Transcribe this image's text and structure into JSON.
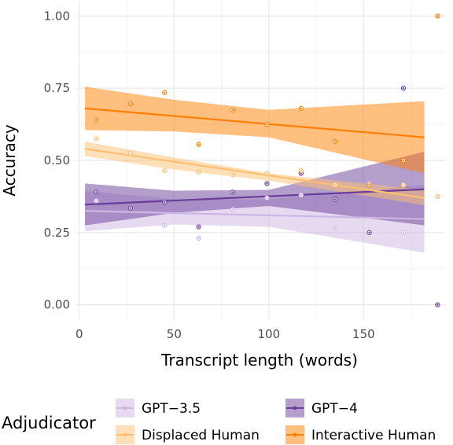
{
  "chart_data": {
    "type": "scatter",
    "xlabel": "Transcript length (words)",
    "ylabel": "Accuracy",
    "xlim": [
      -2,
      193
    ],
    "ylim": [
      -0.05,
      1.05
    ],
    "xticks": [
      0,
      50,
      100,
      150
    ],
    "yticks": [
      0.0,
      0.25,
      0.5,
      0.75,
      1.0
    ],
    "xtick_labels": [
      "0",
      "50",
      "100",
      "150"
    ],
    "ytick_labels": [
      "0.00",
      "0.25",
      "0.50",
      "0.75",
      "1.00"
    ],
    "grid": true,
    "legend": {
      "title": "Adjudicator",
      "position": "bottom",
      "entries": [
        {
          "label": "GPT−3.5",
          "series": 0
        },
        {
          "label": "GPT−4",
          "series": 1
        },
        {
          "label": "Displaced Human",
          "series": 2
        },
        {
          "label": "Interactive Human",
          "series": 3
        }
      ]
    },
    "series": [
      {
        "name": "GPT−3.5",
        "color": "#cdb6e3",
        "points": [
          [
            9,
            0.36
          ],
          [
            45,
            0.275
          ],
          [
            63,
            0.23
          ],
          [
            81,
            0.33
          ],
          [
            99,
            0.37
          ],
          [
            117,
            0.38
          ],
          [
            135,
            0.265
          ],
          [
            153,
            0.42
          ],
          [
            171,
            0.25
          ]
        ],
        "fit": [
          [
            3,
            0.325
          ],
          [
            182,
            0.297
          ]
        ],
        "band": {
          "x": [
            3,
            50,
            100,
            182
          ],
          "lower": [
            0.255,
            0.278,
            0.27,
            0.18
          ],
          "upper": [
            0.395,
            0.365,
            0.365,
            0.415
          ]
        }
      },
      {
        "name": "GPT−4",
        "color": "#6a3d9a",
        "points": [
          [
            9,
            0.39
          ],
          [
            27,
            0.335
          ],
          [
            45,
            0.355
          ],
          [
            63,
            0.27
          ],
          [
            81,
            0.39
          ],
          [
            99,
            0.42
          ],
          [
            117,
            0.455
          ],
          [
            135,
            0.365
          ],
          [
            153,
            0.25
          ],
          [
            171,
            0.75
          ],
          [
            189,
            0.0
          ]
        ],
        "fit": [
          [
            3,
            0.347
          ],
          [
            182,
            0.4
          ]
        ],
        "band": {
          "x": [
            3,
            50,
            100,
            182
          ],
          "lower": [
            0.275,
            0.318,
            0.342,
            0.275
          ],
          "upper": [
            0.42,
            0.395,
            0.398,
            0.53
          ]
        }
      },
      {
        "name": "Displaced Human",
        "color": "#fdbf6f",
        "points": [
          [
            9,
            0.575
          ],
          [
            27,
            0.525
          ],
          [
            45,
            0.465
          ],
          [
            63,
            0.46
          ],
          [
            81,
            0.45
          ],
          [
            99,
            0.455
          ],
          [
            117,
            0.465
          ],
          [
            135,
            0.415
          ],
          [
            153,
            0.415
          ],
          [
            171,
            0.415
          ],
          [
            189,
            0.375
          ]
        ],
        "fit": [
          [
            3,
            0.54
          ],
          [
            182,
            0.37
          ]
        ],
        "band": {
          "x": [
            3,
            50,
            100,
            182
          ],
          "lower": [
            0.515,
            0.468,
            0.43,
            0.345
          ],
          "upper": [
            0.565,
            0.51,
            0.455,
            0.398
          ]
        }
      },
      {
        "name": "Interactive Human",
        "color": "#ff7f00",
        "points": [
          [
            9,
            0.64
          ],
          [
            27,
            0.695
          ],
          [
            45,
            0.735
          ],
          [
            63,
            0.555
          ],
          [
            81,
            0.675
          ],
          [
            99,
            0.625
          ],
          [
            117,
            0.68
          ],
          [
            135,
            0.565
          ],
          [
            153,
            0.415
          ],
          [
            171,
            0.5
          ],
          [
            189,
            1.0
          ]
        ],
        "fit": [
          [
            3,
            0.68
          ],
          [
            182,
            0.58
          ]
        ],
        "band": {
          "x": [
            3,
            50,
            100,
            182
          ],
          "lower": [
            0.605,
            0.6,
            0.58,
            0.455
          ],
          "upper": [
            0.755,
            0.71,
            0.675,
            0.705
          ]
        }
      }
    ]
  }
}
